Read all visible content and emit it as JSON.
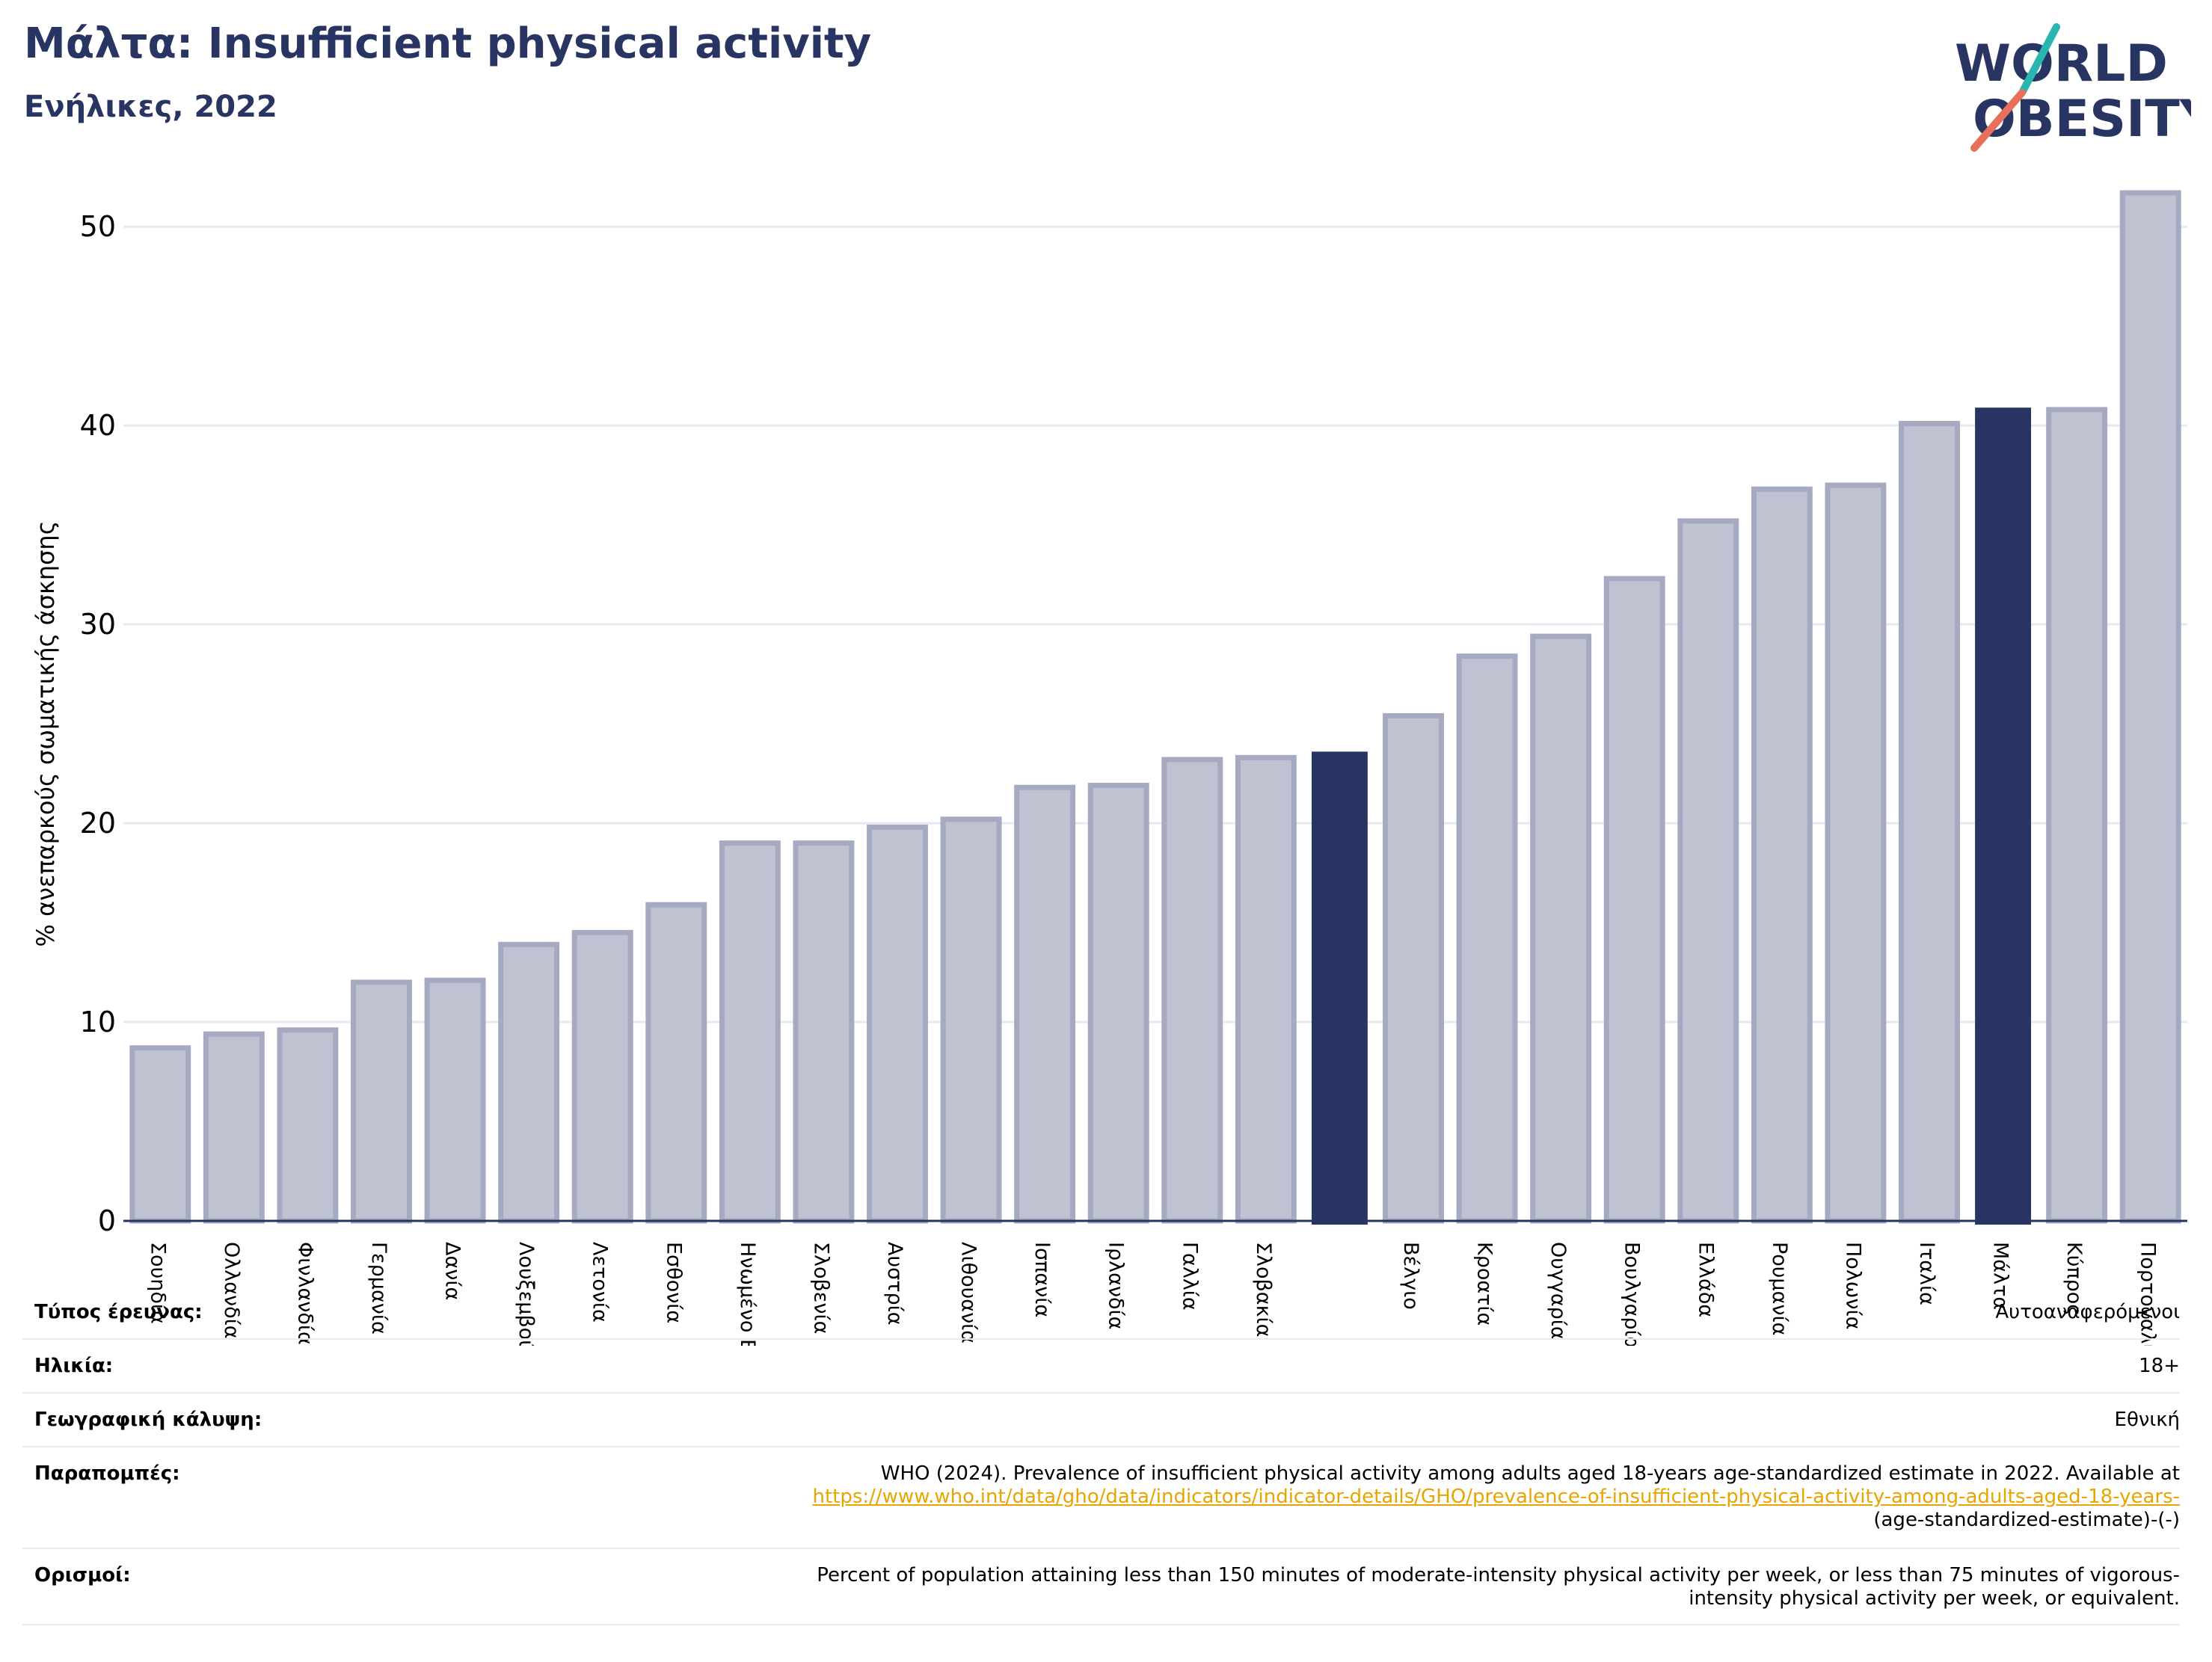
{
  "header": {
    "title": "Μάλτα: Insufficient physical activity",
    "subtitle": "Ενήλικες, 2022",
    "logo_text_line1": "WORLD",
    "logo_text_line2": "OBESITY"
  },
  "colors": {
    "bar": "#bfc3d1",
    "bar_border": "#a5aac0",
    "highlight": "#283562",
    "title": "#283562",
    "grid": "#e6e9f2",
    "link": "#e8a400",
    "logo_teal": "#29b6b0",
    "logo_coral": "#e8705a"
  },
  "chart_data": {
    "type": "bar",
    "ylabel": "% ανεπαρκούς σωματικής άσκησης",
    "xlabel": "",
    "ylim": [
      0,
      52
    ],
    "yticks": [
      0,
      10,
      20,
      30,
      40,
      50
    ],
    "grid": true,
    "highlighted": [
      "",
      "Μάλτα"
    ],
    "categories": [
      "Σουηδία",
      "Ολλανδία",
      "Φινλανδία",
      "Γερμανία",
      "Δανία",
      "Λουξεμβούργο",
      "Λετονία",
      "Εσθονία",
      "Ηνωμένο Βασίλειο",
      "Σλοβενία",
      "Αυστρία",
      "Λιθουανία",
      "Ισπανία",
      "Ιρλανδία",
      "Γαλλία",
      "Σλοβακία",
      "",
      "Βέλγιο",
      "Κροατία",
      "Ουγγαρία",
      "Βουλγαρία",
      "Ελλάδα",
      "Ρουμανία",
      "Πολωνία",
      "Ιταλία",
      "Μάλτα",
      "Κύπρος",
      "Πορτογαλία"
    ],
    "values": [
      8.7,
      9.4,
      9.6,
      12.0,
      12.1,
      13.9,
      14.5,
      15.9,
      19.0,
      19.0,
      19.8,
      20.2,
      21.8,
      21.9,
      23.2,
      23.3,
      23.6,
      25.4,
      28.4,
      29.4,
      32.3,
      35.2,
      36.8,
      37.0,
      40.1,
      40.9,
      40.8,
      51.7
    ]
  },
  "info": {
    "survey_type_label": "Τύπος έρευνας:",
    "survey_type_value": "Αυτοαναφερόμενοι",
    "age_label": "Ηλικία:",
    "age_value": "18+",
    "coverage_label": "Γεωγραφική κάλυψη:",
    "coverage_value": "Εθνική",
    "references_label": "Παραπομπές:",
    "references_text": "WHO (2024). Prevalence of insufficient physical activity among adults aged 18-years age-standardized estimate in 2022. Available at",
    "references_link": "https://www.who.int/data/gho/data/indicators/indicator-details/GHO/prevalence-of-insufficient-physical-activity-among-adults-aged-18-years-",
    "references_tail": "(age-standardized-estimate)-(-)",
    "definitions_label": "Ορισμοί:",
    "definitions_line1": "Percent of population attaining less than 150 minutes of moderate-intensity physical activity per week, or less than 75 minutes of vigorous-",
    "definitions_line2": "intensity physical activity per week, or equivalent."
  }
}
